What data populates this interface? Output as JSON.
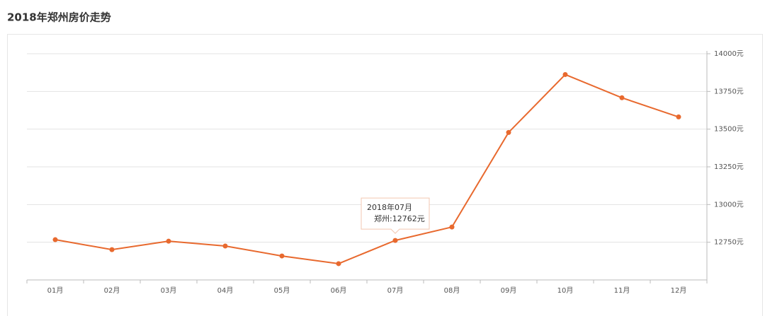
{
  "chart_data": {
    "type": "line",
    "title": "2018年郑州房价走势",
    "categories": [
      "01月",
      "02月",
      "03月",
      "04月",
      "05月",
      "06月",
      "07月",
      "08月",
      "09月",
      "10月",
      "11月",
      "12月"
    ],
    "values": [
      12767,
      12701,
      12757,
      12725,
      12659,
      12608,
      12762,
      12851,
      13478,
      13862,
      13708,
      13581
    ],
    "color": "#e8692e",
    "ylim": [
      12500,
      14000
    ],
    "yticks": [
      {
        "value": 12750,
        "label": "12750元"
      },
      {
        "value": 13000,
        "label": "13000元"
      },
      {
        "value": 13250,
        "label": "13250元"
      },
      {
        "value": 13500,
        "label": "13500元"
      },
      {
        "value": 13750,
        "label": "13750元"
      },
      {
        "value": 14000,
        "label": "14000元"
      }
    ],
    "grid": true,
    "tooltip": {
      "title": "2018年07月",
      "text": "郑州:12762元"
    }
  }
}
